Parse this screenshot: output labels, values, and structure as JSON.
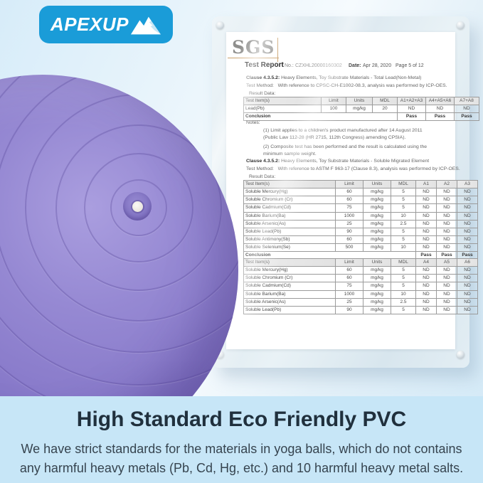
{
  "logo": {
    "text": "APEXUP"
  },
  "report": {
    "brand": "SGS",
    "title": "Test Report",
    "no_label": "No.:",
    "no_value": "CZXHL20000160302",
    "date_label": "Date:",
    "date_value": "Apr 28, 2020",
    "page": "Page 5 of 12",
    "section1": {
      "clause_label": "Clause 4.3.5.2:",
      "clause_text": "Heavy Elements, Toy Substrate Materials - Total Lead(Non-Metal)",
      "method_label": "Test Method:",
      "method_text": "With reference to CPSC-CH-E1002-08.3, analysis was performed by ICP-OES.",
      "result_label": "Result Data:",
      "table": {
        "headers": [
          "Test Item(s)",
          "Limit",
          "Units",
          "MDL",
          "A1+A2+A3",
          "A4+A5+A6",
          "A7+A8"
        ],
        "rows": [
          [
            "Lead(Pb)",
            "100",
            "mg/kg",
            "20",
            "ND",
            "ND",
            "ND"
          ]
        ],
        "conclusion_label": "Conclusion",
        "conclusion_values": [
          "Pass",
          "Pass",
          "Pass"
        ]
      },
      "notes_label": "Notes:",
      "note1": "(1) Limit applies to a children's product manufactured after 14 August 2011 (Public Law 112-28 (HR 2715, 112th Congress) amending CPSIA).",
      "note2": "(2) Composite test has been performed and the result is calculated using the minimum sample weight."
    },
    "section2": {
      "clause_label": "Clause 4.3.5.2:",
      "clause_text": "Heavy Elements, Toy Substrate Materials - Soluble Migrated Element",
      "method_label": "Test Method:",
      "method_text": "With reference to ASTM F 963-17 (Clause 8.3), analysis was performed by ICP-OES.",
      "result_label": "Result Data:",
      "table": {
        "headers": [
          "Test Item(s)",
          "Limit",
          "Units",
          "MDL",
          "A1",
          "A2",
          "A3"
        ],
        "rows": [
          [
            "Soluble Mercury(Hg)",
            "60",
            "mg/kg",
            "5",
            "ND",
            "ND",
            "ND"
          ],
          [
            "Soluble Chromium (Cr)",
            "60",
            "mg/kg",
            "5",
            "ND",
            "ND",
            "ND"
          ],
          [
            "Soluble Cadmium(Cd)",
            "75",
            "mg/kg",
            "5",
            "ND",
            "ND",
            "ND"
          ],
          [
            "Soluble Barium(Ba)",
            "1000",
            "mg/kg",
            "10",
            "ND",
            "ND",
            "ND"
          ],
          [
            "Soluble Arsenic(As)",
            "25",
            "mg/kg",
            "2.5",
            "ND",
            "ND",
            "ND"
          ],
          [
            "Soluble Lead(Pb)",
            "90",
            "mg/kg",
            "5",
            "ND",
            "ND",
            "ND"
          ],
          [
            "Soluble Antimony(Sb)",
            "60",
            "mg/kg",
            "5",
            "ND",
            "ND",
            "ND"
          ],
          [
            "Soluble Selenium(Se)",
            "500",
            "mg/kg",
            "10",
            "ND",
            "ND",
            "ND"
          ]
        ],
        "conclusion_label": "Conclusion",
        "conclusion_values": [
          "Pass",
          "Pass",
          "Pass"
        ]
      }
    },
    "table3": {
      "headers": [
        "Test Item(s)",
        "Limit",
        "Units",
        "MDL",
        "A4",
        "A5",
        "A6"
      ],
      "rows": [
        [
          "Soluble Mercury(Hg)",
          "60",
          "mg/kg",
          "5",
          "ND",
          "ND",
          "ND"
        ],
        [
          "Soluble Chromium (Cr)",
          "60",
          "mg/kg",
          "5",
          "ND",
          "ND",
          "ND"
        ],
        [
          "Soluble Cadmium(Cd)",
          "75",
          "mg/kg",
          "5",
          "ND",
          "ND",
          "ND"
        ],
        [
          "Soluble Barium(Ba)",
          "1000",
          "mg/kg",
          "10",
          "ND",
          "ND",
          "ND"
        ],
        [
          "Soluble Arsenic(As)",
          "25",
          "mg/kg",
          "2.5",
          "ND",
          "ND",
          "ND"
        ],
        [
          "Soluble Lead(Pb)",
          "90",
          "mg/kg",
          "5",
          "ND",
          "ND",
          "ND"
        ]
      ]
    }
  },
  "caption": {
    "heading": "High Standard Eco Friendly PVC",
    "body_line1": "We have strict standards for the materials in yoga balls, which do not contains",
    "body_line2": "any harmful heavy metals (Pb, Cd, Hg, etc.) and 10 harmful heavy metal salts."
  },
  "colors": {
    "logo_blue": "#1a9cd8",
    "ball_purple": "#8a7ccb",
    "band_blue": "#c7e6f7",
    "heading_dark": "#20303d"
  }
}
